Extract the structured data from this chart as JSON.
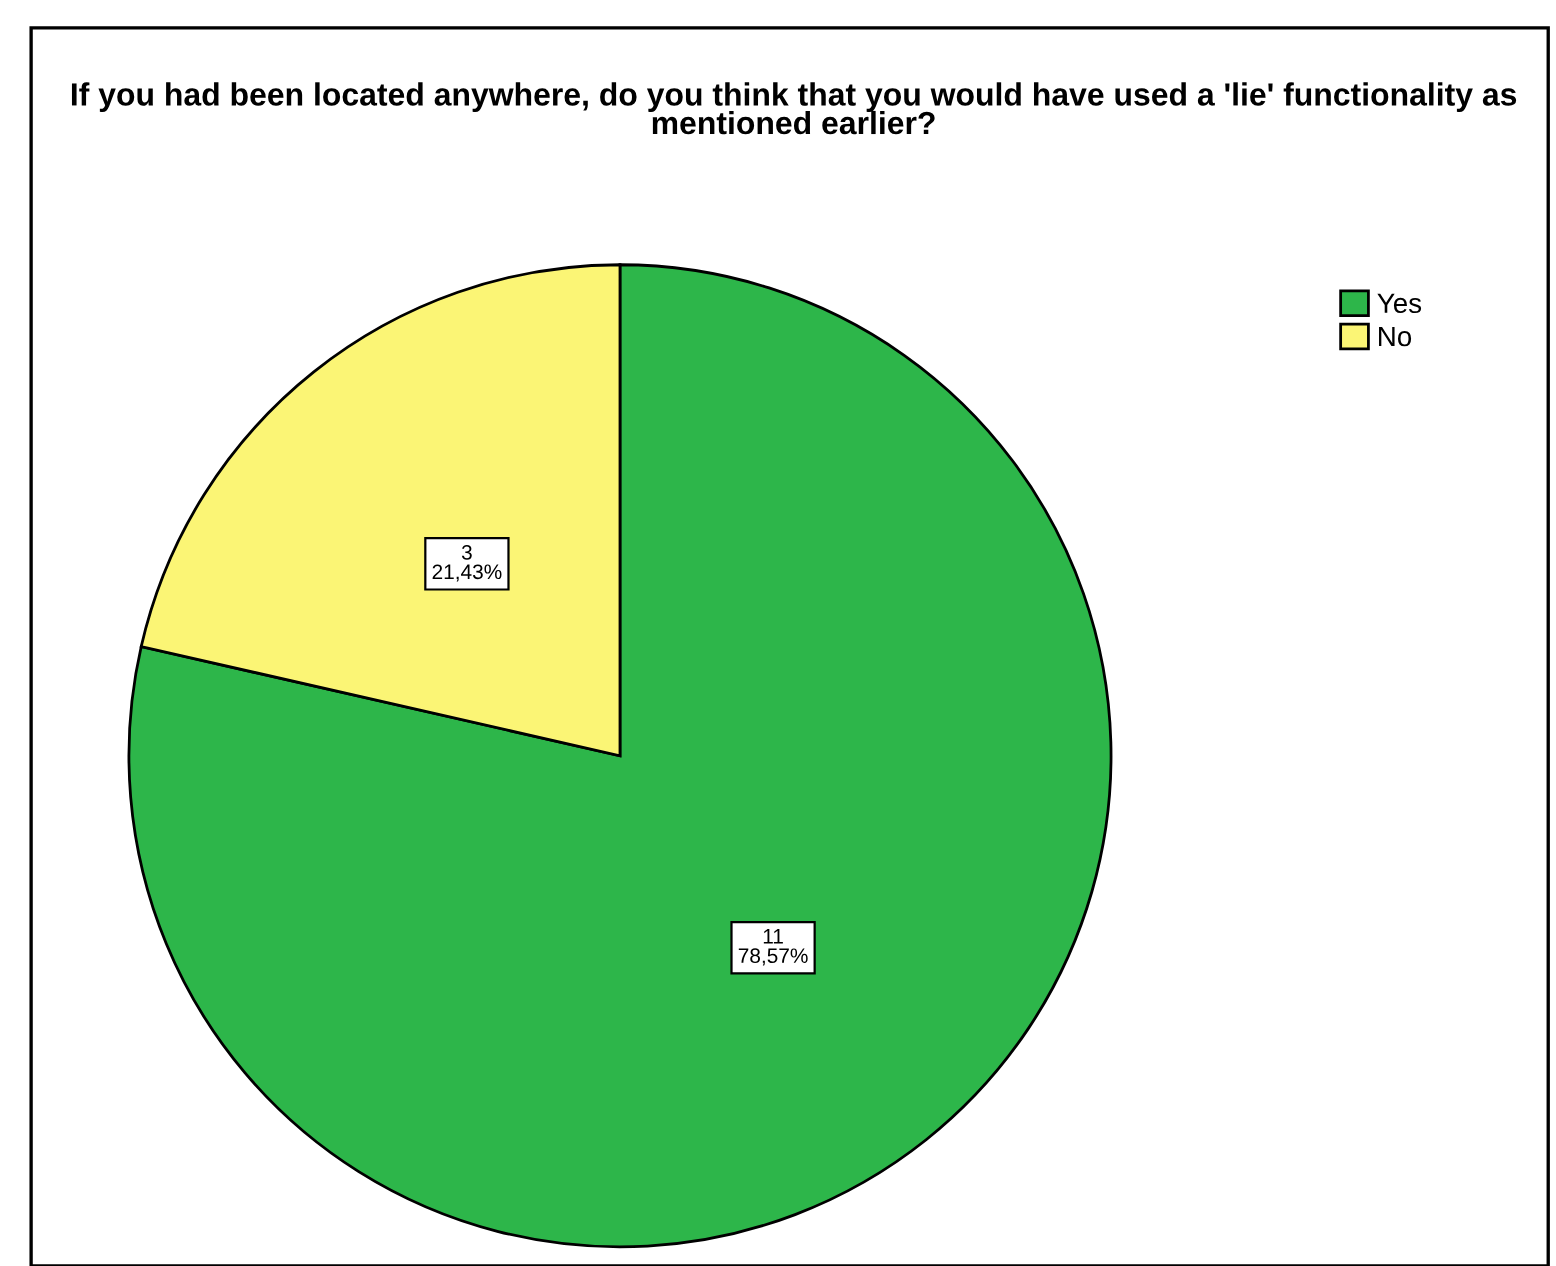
{
  "chart_data": {
    "type": "pie",
    "title": "If you had been located anywhere, do you think that you would have used a 'lie' functionality as mentioned earlier?",
    "categories": [
      "Yes",
      "No"
    ],
    "values": [
      11,
      3
    ],
    "colors": [
      "#2db64a",
      "#fbf575"
    ],
    "value_labels": [
      "11\n78,57%",
      "3\n21,43%"
    ],
    "legend": "top right"
  }
}
